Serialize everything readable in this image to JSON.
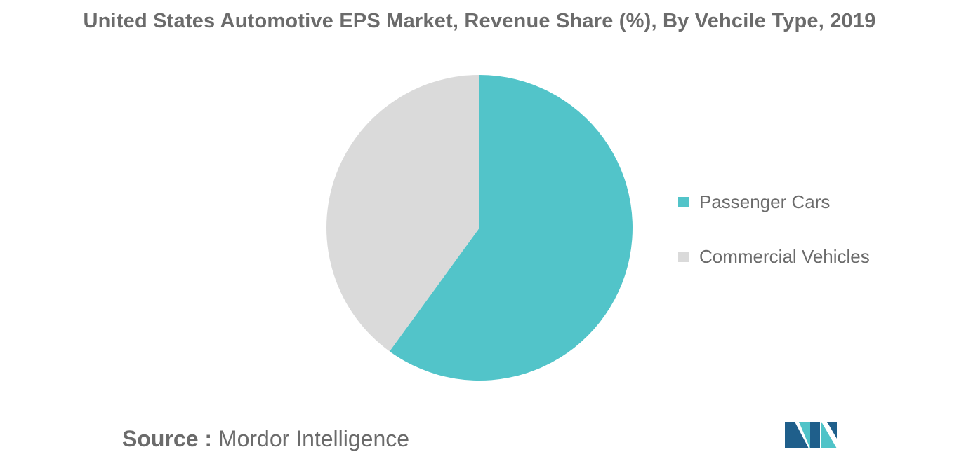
{
  "chart_data": {
    "type": "pie",
    "title": "United States Automotive EPS Market, Revenue Share (%), By Vehcile Type, 2019",
    "categories": [
      "Passenger Cars",
      "Commercial Vehicles"
    ],
    "values": [
      60,
      40
    ],
    "colors": [
      "#52c4c9",
      "#dadada"
    ],
    "start_angle_deg": 0,
    "direction": "clockwise",
    "legend_position": "right"
  },
  "source": {
    "label": "Source :",
    "value": "Mordor Intelligence"
  },
  "logo": {
    "icon": "mordor-intelligence-logo",
    "colors": [
      "#1f5f8b",
      "#4fc3c8"
    ]
  }
}
